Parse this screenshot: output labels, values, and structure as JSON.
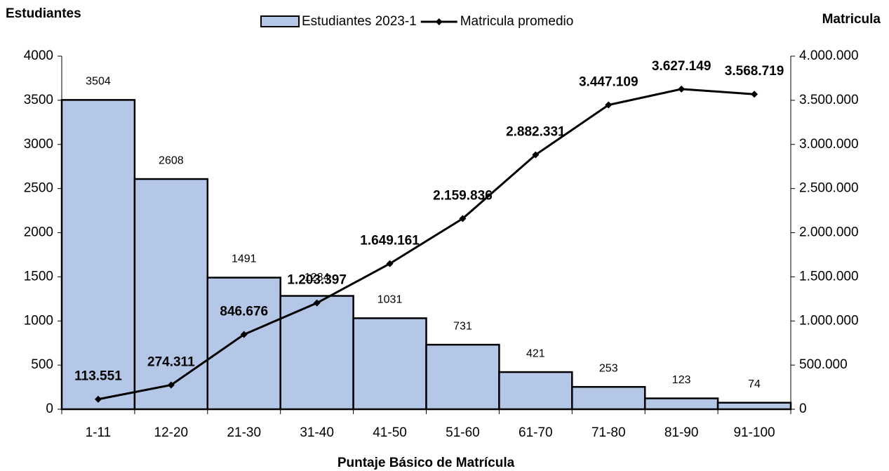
{
  "chart_data": {
    "type": "bar",
    "y_label": "Estudiantes",
    "y2_label": "Matricula",
    "x_label": "Puntaje Básico de Matrícula",
    "categories": [
      "1-11",
      "12-20",
      "21-30",
      "31-40",
      "41-50",
      "51-60",
      "61-70",
      "71-80",
      "81-90",
      "91-100"
    ],
    "series": [
      {
        "name": "Estudiantes 2023-1",
        "type": "bar",
        "color": "#b4c7e7",
        "values": [
          3504,
          2608,
          1491,
          1284,
          1031,
          731,
          421,
          253,
          123,
          74
        ]
      },
      {
        "name": "Matricula promedio",
        "type": "line",
        "color": "#000000",
        "axis": "y2",
        "values": [
          113551,
          274311,
          846676,
          1203397,
          1649161,
          2159836,
          2882331,
          3447109,
          3627149,
          3568719
        ],
        "value_labels": [
          "113.551",
          "274.311",
          "846.676",
          "1.203.397",
          "1.649.161",
          "2.159.836",
          "2.882.331",
          "3.447.109",
          "3.627.149",
          "3.568.719"
        ]
      }
    ],
    "ylim": [
      0,
      4000
    ],
    "yticks": [
      0,
      500,
      1000,
      1500,
      2000,
      2500,
      3000,
      3500,
      4000
    ],
    "y2lim": [
      0,
      4000000
    ],
    "y2ticks": [
      0,
      {
        "value": 500000,
        "label": "500.000"
      },
      {
        "value": 1000000,
        "label": "1.000.000"
      },
      {
        "value": 1500000,
        "label": "1.500.000"
      },
      {
        "value": 2000000,
        "label": "2.000.000"
      },
      {
        "value": 2500000,
        "label": "2.500.000"
      },
      {
        "value": 3000000,
        "label": "3.000.000"
      },
      {
        "value": 3500000,
        "label": "3.500.000"
      },
      {
        "value": 4000000,
        "label": "4.000.000"
      }
    ],
    "legend": "top"
  }
}
